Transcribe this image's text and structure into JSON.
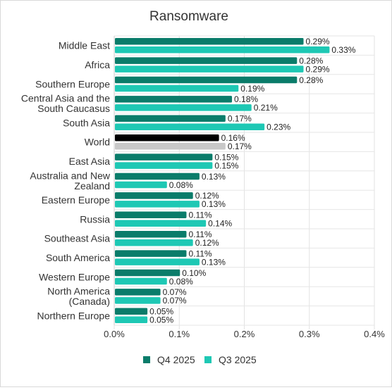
{
  "chart_data": {
    "type": "bar",
    "orientation": "horizontal",
    "title": "Ransomware",
    "xlabel": "",
    "ylabel": "",
    "xlim": [
      0,
      0.4
    ],
    "x_ticks": [
      "0.0%",
      "0.1%",
      "0.2%",
      "0.3%",
      "0.4%"
    ],
    "grid": true,
    "legend_position": "bottom",
    "categories": [
      "Middle East",
      "Africa",
      "Southern Europe",
      "Central Asia and the South Caucasus",
      "South Asia",
      "World",
      "East Asia",
      "Australia and New Zealand",
      "Eastern Europe",
      "Russia",
      "Southeast Asia",
      "South America",
      "Western Europe",
      "North America (Canada)",
      "Northern Europe"
    ],
    "category_lines": [
      [
        "Middle East"
      ],
      [
        "Africa"
      ],
      [
        "Southern Europe"
      ],
      [
        "Central Asia and the",
        "South Caucasus"
      ],
      [
        "South Asia"
      ],
      [
        "World"
      ],
      [
        "East Asia"
      ],
      [
        "Australia and New",
        "Zealand"
      ],
      [
        "Eastern Europe"
      ],
      [
        "Russia"
      ],
      [
        "Southeast Asia"
      ],
      [
        "South America"
      ],
      [
        "Western Europe"
      ],
      [
        "North America",
        "(Canada)"
      ],
      [
        "Northern Europe"
      ]
    ],
    "highlight_category": "World",
    "series": [
      {
        "name": "Q4 2025",
        "color": "#0a7c6a",
        "highlight_color": "#000000",
        "values": [
          0.29,
          0.28,
          0.28,
          0.18,
          0.17,
          0.16,
          0.15,
          0.13,
          0.12,
          0.11,
          0.11,
          0.11,
          0.1,
          0.07,
          0.05
        ],
        "labels": [
          "0.29%",
          "0.28%",
          "0.28%",
          "0.18%",
          "0.17%",
          "0.16%",
          "0.15%",
          "0.13%",
          "0.12%",
          "0.11%",
          "0.11%",
          "0.11%",
          "0.10%",
          "0.07%",
          "0.05%"
        ]
      },
      {
        "name": "Q3 2025",
        "color": "#1ec8b4",
        "highlight_color": "#c8c8c8",
        "values": [
          0.33,
          0.29,
          0.19,
          0.21,
          0.23,
          0.17,
          0.15,
          0.08,
          0.13,
          0.14,
          0.12,
          0.13,
          0.08,
          0.07,
          0.05
        ],
        "labels": [
          "0.33%",
          "0.29%",
          "0.19%",
          "0.21%",
          "0.23%",
          "0.17%",
          "0.15%",
          "0.08%",
          "0.13%",
          "0.14%",
          "0.12%",
          "0.13%",
          "0.08%",
          "0.07%",
          "0.05%"
        ]
      }
    ]
  }
}
